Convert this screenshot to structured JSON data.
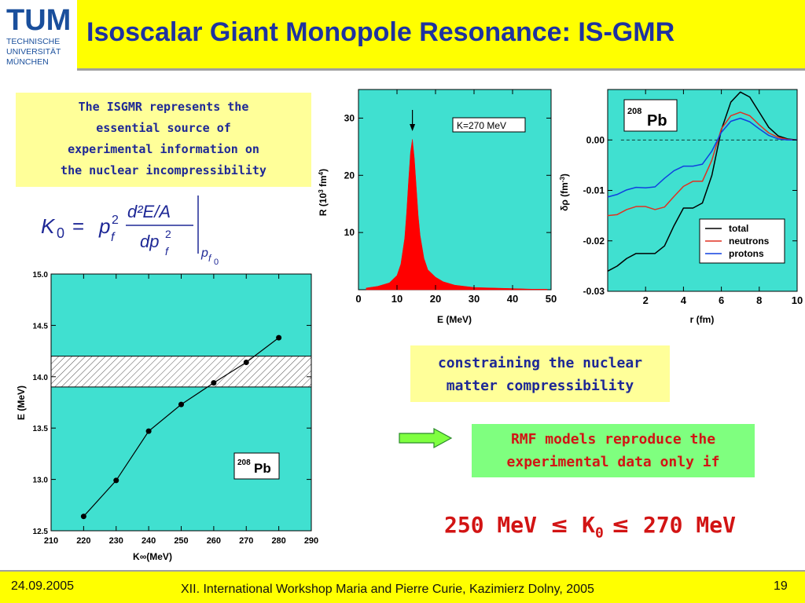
{
  "logo": {
    "mark": "TUM",
    "lines": [
      "TECHNISCHE",
      "UNIVERSITÄT",
      "MÜNCHEN"
    ]
  },
  "title": "Isoscalar Giant Monopole Resonance: IS-GMR",
  "intro_text": [
    "The ISGMR represents the",
    "essential source of",
    "experimental information on",
    "the nuclear incompressibility"
  ],
  "formula": {
    "lhs": "K",
    "lhs_sub": "0",
    "eq": "=",
    "p": "p",
    "p_sup": "2",
    "p_sub": "f",
    "num": "d²E/A",
    "den": "dp",
    "den_sup": "2",
    "den_sub": "f",
    "eval_sub": "p",
    "eval_sub2": "f",
    "eval_sub3": "0"
  },
  "constraining_text": [
    "constraining the nuclear",
    "matter compressibility"
  ],
  "rmf_text": [
    "RMF models reproduce the",
    "experimental data only if"
  ],
  "result": {
    "prefix": "250 MeV ",
    "le1": "≤",
    "k": " K",
    "k_sub": "0",
    "le2": " ≤",
    "suffix": " 270 MeV"
  },
  "footer": {
    "date": "24.09.2005",
    "conference": "XII. International Workshop Maria and Pierre Curie, Kazimierz Dolny, 2005",
    "page": "19"
  },
  "colors": {
    "title": "#1e32a0",
    "bar": "#ffff00",
    "plot_bg": "#40e0d0",
    "strength": "#ff0000",
    "total": "#000000",
    "neutrons": "#e03020",
    "protons": "#1040e0",
    "arrow": "#7fff40"
  },
  "chart_data": [
    {
      "type": "line",
      "xlabel": "K∞(MeV)",
      "ylabel": "E (MeV)",
      "xlim": [
        210,
        290
      ],
      "ylim": [
        12.5,
        15.0
      ],
      "xticks": [
        210,
        220,
        230,
        240,
        250,
        260,
        270,
        280,
        290
      ],
      "yticks": [
        "12.5",
        "13.0",
        "13.5",
        "14.0",
        "14.5",
        "15.0"
      ],
      "x": [
        220,
        230,
        240,
        250,
        260,
        270,
        280
      ],
      "y": [
        12.64,
        12.99,
        13.47,
        13.73,
        13.94,
        14.14,
        14.38
      ],
      "band": [
        13.9,
        14.2
      ],
      "annotation": {
        "sup": "208",
        "text": "Pb"
      }
    },
    {
      "type": "area",
      "xlabel": "E (MeV)",
      "ylabel": {
        "a": "R (10",
        "sup1": "3",
        "b": " fm",
        "sup2": "4",
        "c": ")"
      },
      "xlim": [
        0,
        50
      ],
      "ylim": [
        0,
        35
      ],
      "xticks": [
        0,
        10,
        20,
        30,
        40,
        50
      ],
      "yticks": [
        10,
        20,
        30
      ],
      "x": [
        2,
        5,
        8,
        10,
        11,
        12,
        12.5,
        13,
        13.5,
        14,
        14.5,
        15,
        15.5,
        16,
        17,
        18,
        20,
        22,
        25,
        30,
        35,
        40,
        45,
        49
      ],
      "y": [
        0.3,
        0.6,
        1.2,
        2.5,
        4.5,
        9,
        13.5,
        19,
        24,
        26.3,
        23,
        18,
        13,
        9.5,
        5.5,
        3.5,
        2.2,
        1.4,
        0.8,
        0.4,
        0.3,
        0.2,
        0.1,
        0.1
      ],
      "legend": "K=270 MeV",
      "arrow_x": 14
    },
    {
      "type": "line",
      "xlabel": "r (fm)",
      "ylabel": {
        "a": "δρ (fm",
        "sup": "-3",
        "b": ")"
      },
      "xlim": [
        0,
        10
      ],
      "ylim": [
        -0.03,
        0.01
      ],
      "xticks": [
        2,
        4,
        6,
        8,
        10
      ],
      "yticks": [
        "0.00",
        "-0.01",
        "-0.02",
        "-0.03"
      ],
      "annotation": {
        "sup": "208",
        "text": "Pb"
      },
      "series": [
        {
          "name": "total",
          "x": [
            0,
            0.5,
            1,
            1.5,
            2,
            2.5,
            3,
            3.5,
            4,
            4.5,
            5,
            5.5,
            6,
            6.5,
            7,
            7.5,
            8,
            8.5,
            9,
            9.5,
            10
          ],
          "y": [
            -0.026,
            -0.025,
            -0.0235,
            -0.0225,
            -0.0225,
            -0.0225,
            -0.021,
            -0.017,
            -0.0135,
            -0.0135,
            -0.0125,
            -0.007,
            0.002,
            0.0075,
            0.0095,
            0.0085,
            0.0055,
            0.0025,
            0.0008,
            0.0002,
            0.0
          ]
        },
        {
          "name": "neutrons",
          "x": [
            0,
            0.5,
            1,
            1.5,
            2,
            2.5,
            3,
            3.5,
            4,
            4.5,
            5,
            5.5,
            6,
            6.5,
            7,
            7.5,
            8,
            8.5,
            9,
            9.5,
            10
          ],
          "y": [
            -0.015,
            -0.0148,
            -0.0138,
            -0.0132,
            -0.0132,
            -0.0138,
            -0.0133,
            -0.0112,
            -0.0092,
            -0.0082,
            -0.0082,
            -0.004,
            0.0022,
            0.0048,
            0.0055,
            0.0048,
            0.003,
            0.0014,
            0.0005,
            0.0001,
            0.0
          ]
        },
        {
          "name": "protons",
          "x": [
            0,
            0.5,
            1,
            1.5,
            2,
            2.5,
            3,
            3.5,
            4,
            4.5,
            5,
            5.5,
            6,
            6.5,
            7,
            7.5,
            8,
            8.5,
            9,
            9.5,
            10
          ],
          "y": [
            -0.0113,
            -0.0108,
            -0.0099,
            -0.0094,
            -0.0095,
            -0.0093,
            -0.0076,
            -0.0061,
            -0.0052,
            -0.0052,
            -0.0048,
            -0.0022,
            0.0015,
            0.0037,
            0.0043,
            0.0036,
            0.0022,
            0.0009,
            0.0002,
            0.0,
            0.0
          ]
        }
      ]
    }
  ]
}
